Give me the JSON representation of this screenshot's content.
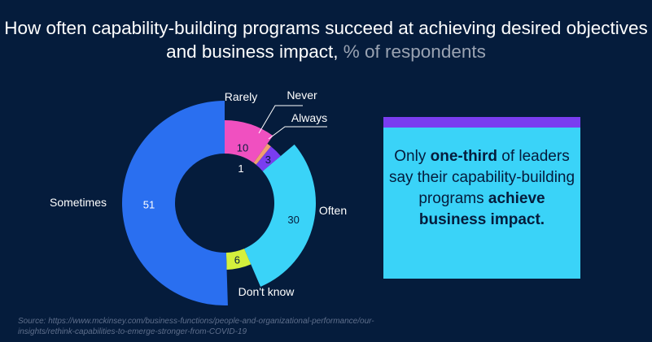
{
  "title": {
    "main": "How often capability-building programs succeed at achieving desired objectives and business impact,",
    "suffix": "% of respondents"
  },
  "chart_data": {
    "type": "pie",
    "style": "exploded-donut",
    "unit": "% of respondents",
    "slices": [
      {
        "label": "Rarely",
        "value": 10,
        "color": "#F050C0"
      },
      {
        "label": "Never",
        "value": 1,
        "color": "#F0A070"
      },
      {
        "label": "Always",
        "value": 3,
        "color": "#7A3DF0"
      },
      {
        "label": "Often",
        "value": 30,
        "color": "#3AD3F8"
      },
      {
        "label": "Don't know",
        "value": 6,
        "color": "#D4F03C"
      },
      {
        "label": "Sometimes",
        "value": 51,
        "color": "#2A6FF0"
      }
    ]
  },
  "callout": {
    "p1": "Only ",
    "b1": "one-third",
    "p2": " of leaders say their capability-building programs ",
    "b2": "achieve business impact."
  },
  "source": "Source: https://www.mckinsey.com/business-functions/people-and-organizational-performance/our-insights/rethink-capabilities-to-emerge-stronger-from-COVID-19"
}
